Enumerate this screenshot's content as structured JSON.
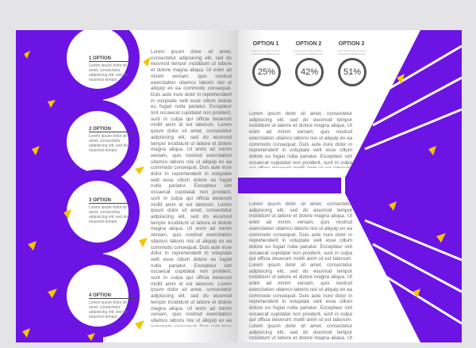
{
  "left": {
    "options": [
      {
        "title": "1 OPTION",
        "text": "Lorem ipsum dolor sit amet, consectetur adipisicing elit, sed do eiusmod tempor"
      },
      {
        "title": "2 OPTION",
        "text": "Lorem ipsum dolor sit amet, consectetur adipisicing elit, sed do eiusmod tempor"
      },
      {
        "title": "3 OPTION",
        "text": "Lorem ipsum dolor sit amet, consectetur adipisicing elit, sed do eiusmod tempor"
      },
      {
        "title": "4 OPTION",
        "text": "Lorem ipsum dolor sit amet, consectetur adipisicing elit, sed do eiusmod tempor"
      }
    ],
    "body": "Lorem ipsum dolor sit amet, consectetur adipisicing elit, sed do eiusmod tempor incididunt ut labore et dolore magna aliqua. Ut enim ad minim veniam, quis nostrud exercitation ullamco laboris nisi ut aliquip ex ea commodo consequat. Duis aute irure dolor in reprehenderit in voluptate velit esse cillum dolore eu fugiat nulla pariatur. Excepteur sint occaecat cupidatat non proident, sunt in culpa qui officia deserunt mollit anim id est laborum. Lorem ipsum dolor sit amet, consectetur adipisicing elit, sed do eiusmod tempor incididunt ut labore et dolore magna aliqua. Ut enim ad minim veniam, quis nostrud exercitation ullamco laboris nisi ut aliquip ex ea commodo consequat. Duis aute irure dolor in reprehenderit in voluptate velit esse cillum dolore eu fugiat nulla pariatur. Excepteur sint occaecat cupidatat non proident, sunt in culpa qui officia deserunt mollit anim id est laborum. Lorem ipsum dolor sit amet, consectetur adipisicing elit, sed do eiusmod tempor incididunt ut labore et dolore magna aliqua. Ut enim ad minim veniam, quis nostrud exercitation ullamco laboris nisi ut aliquip ex ea commodo consequat. Duis aute irure dolor in reprehenderit in voluptate velit esse cillum dolore eu fugiat nulla pariatur. Excepteur sint occaecat cupidatat non proident, sunt in culpa qui officia deserunt mollit anim id est laborum. Lorem ipsum dolor sit amet, consectetur adipisicing elit, sed do eiusmod tempor incididunt ut labore et dolore magna aliqua. Ut enim ad minim veniam, quis nostrud exercitation ullamco laboris nisi ut aliquip ex ea commodo consequat. Duis aute irure dolor in reprehenderit in voluptate velit esse cillum dolore eu fugiat nulla pariatur. Excepteur sint occaecat cupidatat non proident, sunt in culpa qui officia deserunt mollit anim id est laborum. Lorem ipsum dolor sit amet,"
  },
  "right": {
    "stats": [
      {
        "title": "OPTION 1",
        "sub": "Lorem ipsum dolor sit amet, consectetur adipisicing elit",
        "value": "25%",
        "fraction": 0.25
      },
      {
        "title": "OPTION 2",
        "sub": "Lorem ipsum dolor sit amet, consectetur adipisicing elit",
        "value": "42%",
        "fraction": 0.42
      },
      {
        "title": "OPTION 3",
        "sub": "Lorem ipsum dolor sit amet, consectetur adipisicing elit",
        "value": "51%",
        "fraction": 0.51
      }
    ],
    "body_top": "Lorem ipsum dolor sit amet, consectetur adipisicing elit, sed do eiusmod tempor incididunt ut labore et dolore magna aliqua. Ut enim ad minim veniam, quis nostrud exercitation ullamco laboris nisi ut aliquip ex ea commodo consequat. Duis aute irure dolor in reprehenderit in voluptate velit esse cillum dolore eu fugiat nulla pariatur. Excepteur sint occaecat cupidatat non proident, sunt in culpa qui officia deserunt mollit anim id est laborum. Lorem ipsum dolor sit amet, consectetur adipisicing elit, sed do eiusmod tempor incididunt ut labore et dolore magna aliqua. Ut enim ad minim veniam, quis nostrud exercitation ullamco laboris nisi ut aliquip ex ea commodo consequat.",
    "body_bottom": "Lorem ipsum dolor sit amet, consectetur adipisicing elit, sed do eiusmod tempor incididunt ut labore et dolore magna aliqua. Ut enim ad minim veniam, quis nostrud exercitation ullamco laboris nisi ut aliquip ex ea commodo consequat. Duis aute irure dolor in reprehenderit in voluptate velit esse cillum dolore eu fugiat nulla pariatur. Excepteur sint occaecat cupidatat non proident, sunt in culpa qui officia deserunt mollit anim id est laborum. Lorem ipsum dolor sit amet, consectetur adipisicing elit, sed do eiusmod tempor incididunt ut labore et dolore magna aliqua. Ut enim ad minim veniam, quis nostrud exercitation ullamco laboris nisi ut aliquip ex ea commodo consequat. Duis aute irure dolor in reprehenderit in voluptate velit esse cillum dolore eu fugiat nulla pariatur. Excepteur sint occaecat cupidatat non proident, sunt in culpa qui officia deserunt mollit anim id est laborum. Lorem ipsum dolor sit amet, consectetur adipisicing elit, sed do eiusmod tempor incididunt ut labore et dolore magna aliqua. Ut enim ad minim veniam, quis nostrud exercitation ullamco laboris nisi ut aliquip ex ea commodo consequat."
  },
  "colors": {
    "purple": "#6b14e3",
    "yellow": "#f5c400",
    "background": "#e4e4e6"
  }
}
